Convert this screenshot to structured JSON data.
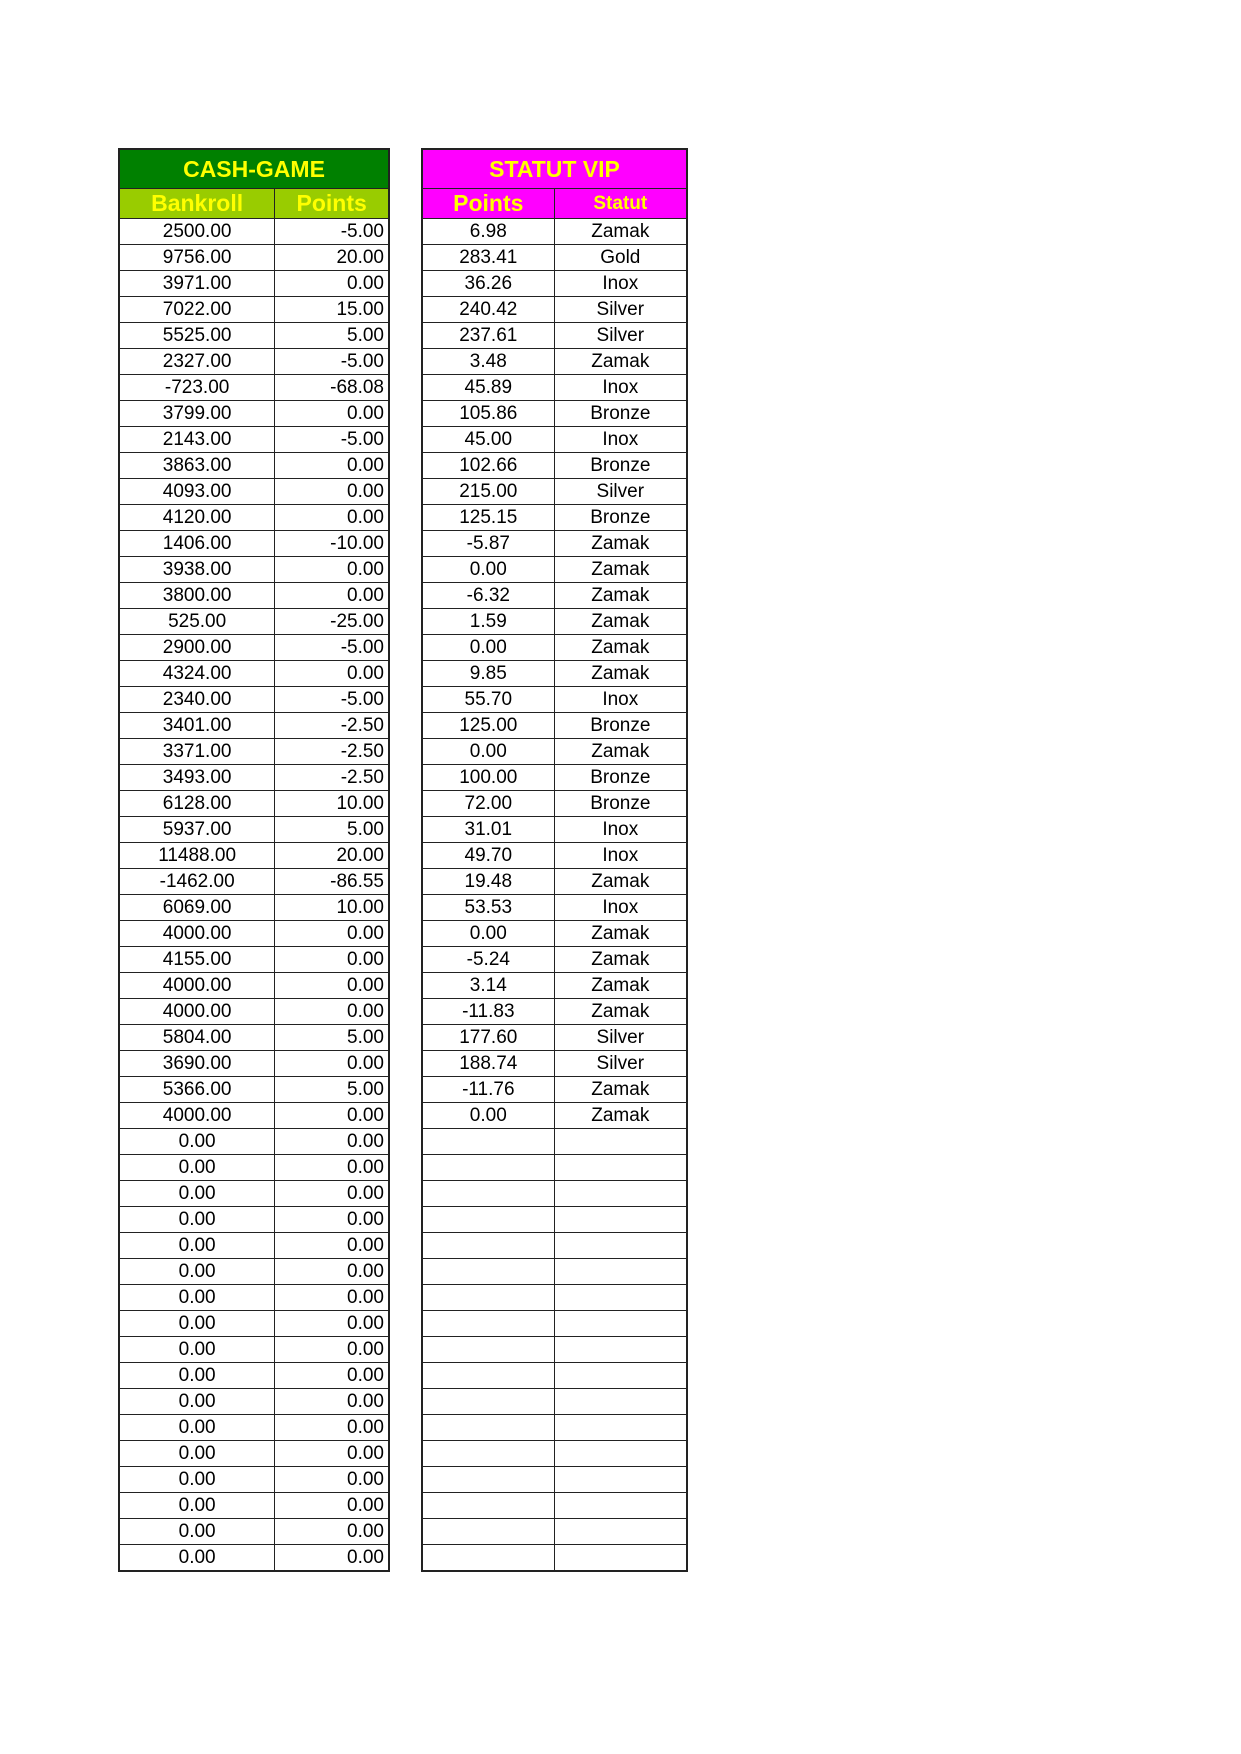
{
  "colors": {
    "cash_title_bg": "#008000",
    "cash_header_bg": "#99cc00",
    "vip_bg": "#ff00ff",
    "header_text": "#ffff00"
  },
  "cash_game": {
    "title": "CASH-GAME",
    "columns": [
      "Bankroll",
      "Points"
    ],
    "rows": [
      [
        "2500.00",
        "-5.00"
      ],
      [
        "9756.00",
        "20.00"
      ],
      [
        "3971.00",
        "0.00"
      ],
      [
        "7022.00",
        "15.00"
      ],
      [
        "5525.00",
        "5.00"
      ],
      [
        "2327.00",
        "-5.00"
      ],
      [
        "-723.00",
        "-68.08"
      ],
      [
        "3799.00",
        "0.00"
      ],
      [
        "2143.00",
        "-5.00"
      ],
      [
        "3863.00",
        "0.00"
      ],
      [
        "4093.00",
        "0.00"
      ],
      [
        "4120.00",
        "0.00"
      ],
      [
        "1406.00",
        "-10.00"
      ],
      [
        "3938.00",
        "0.00"
      ],
      [
        "3800.00",
        "0.00"
      ],
      [
        "525.00",
        "-25.00"
      ],
      [
        "2900.00",
        "-5.00"
      ],
      [
        "4324.00",
        "0.00"
      ],
      [
        "2340.00",
        "-5.00"
      ],
      [
        "3401.00",
        "-2.50"
      ],
      [
        "3371.00",
        "-2.50"
      ],
      [
        "3493.00",
        "-2.50"
      ],
      [
        "6128.00",
        "10.00"
      ],
      [
        "5937.00",
        "5.00"
      ],
      [
        "11488.00",
        "20.00"
      ],
      [
        "-1462.00",
        "-86.55"
      ],
      [
        "6069.00",
        "10.00"
      ],
      [
        "4000.00",
        "0.00"
      ],
      [
        "4155.00",
        "0.00"
      ],
      [
        "4000.00",
        "0.00"
      ],
      [
        "4000.00",
        "0.00"
      ],
      [
        "5804.00",
        "5.00"
      ],
      [
        "3690.00",
        "0.00"
      ],
      [
        "5366.00",
        "5.00"
      ],
      [
        "4000.00",
        "0.00"
      ],
      [
        "0.00",
        "0.00"
      ],
      [
        "0.00",
        "0.00"
      ],
      [
        "0.00",
        "0.00"
      ],
      [
        "0.00",
        "0.00"
      ],
      [
        "0.00",
        "0.00"
      ],
      [
        "0.00",
        "0.00"
      ],
      [
        "0.00",
        "0.00"
      ],
      [
        "0.00",
        "0.00"
      ],
      [
        "0.00",
        "0.00"
      ],
      [
        "0.00",
        "0.00"
      ],
      [
        "0.00",
        "0.00"
      ],
      [
        "0.00",
        "0.00"
      ],
      [
        "0.00",
        "0.00"
      ],
      [
        "0.00",
        "0.00"
      ],
      [
        "0.00",
        "0.00"
      ],
      [
        "0.00",
        "0.00"
      ],
      [
        "0.00",
        "0.00"
      ]
    ]
  },
  "statut_vip": {
    "title": "STATUT VIP",
    "columns": [
      "Points",
      "Statut"
    ],
    "rows": [
      [
        "6.98",
        "Zamak"
      ],
      [
        "283.41",
        "Gold"
      ],
      [
        "36.26",
        "Inox"
      ],
      [
        "240.42",
        "Silver"
      ],
      [
        "237.61",
        "Silver"
      ],
      [
        "3.48",
        "Zamak"
      ],
      [
        "45.89",
        "Inox"
      ],
      [
        "105.86",
        "Bronze"
      ],
      [
        "45.00",
        "Inox"
      ],
      [
        "102.66",
        "Bronze"
      ],
      [
        "215.00",
        "Silver"
      ],
      [
        "125.15",
        "Bronze"
      ],
      [
        "-5.87",
        "Zamak"
      ],
      [
        "0.00",
        "Zamak"
      ],
      [
        "-6.32",
        "Zamak"
      ],
      [
        "1.59",
        "Zamak"
      ],
      [
        "0.00",
        "Zamak"
      ],
      [
        "9.85",
        "Zamak"
      ],
      [
        "55.70",
        "Inox"
      ],
      [
        "125.00",
        "Bronze"
      ],
      [
        "0.00",
        "Zamak"
      ],
      [
        "100.00",
        "Bronze"
      ],
      [
        "72.00",
        "Bronze"
      ],
      [
        "31.01",
        "Inox"
      ],
      [
        "49.70",
        "Inox"
      ],
      [
        "19.48",
        "Zamak"
      ],
      [
        "53.53",
        "Inox"
      ],
      [
        "0.00",
        "Zamak"
      ],
      [
        "-5.24",
        "Zamak"
      ],
      [
        "3.14",
        "Zamak"
      ],
      [
        "-11.83",
        "Zamak"
      ],
      [
        "177.60",
        "Silver"
      ],
      [
        "188.74",
        "Silver"
      ],
      [
        "-11.76",
        "Zamak"
      ],
      [
        "0.00",
        "Zamak"
      ],
      [
        "",
        ""
      ],
      [
        "",
        ""
      ],
      [
        "",
        ""
      ],
      [
        "",
        ""
      ],
      [
        "",
        ""
      ],
      [
        "",
        ""
      ],
      [
        "",
        ""
      ],
      [
        "",
        ""
      ],
      [
        "",
        ""
      ],
      [
        "",
        ""
      ],
      [
        "",
        ""
      ],
      [
        "",
        ""
      ],
      [
        "",
        ""
      ],
      [
        "",
        ""
      ],
      [
        "",
        ""
      ],
      [
        "",
        ""
      ],
      [
        "",
        ""
      ]
    ]
  }
}
